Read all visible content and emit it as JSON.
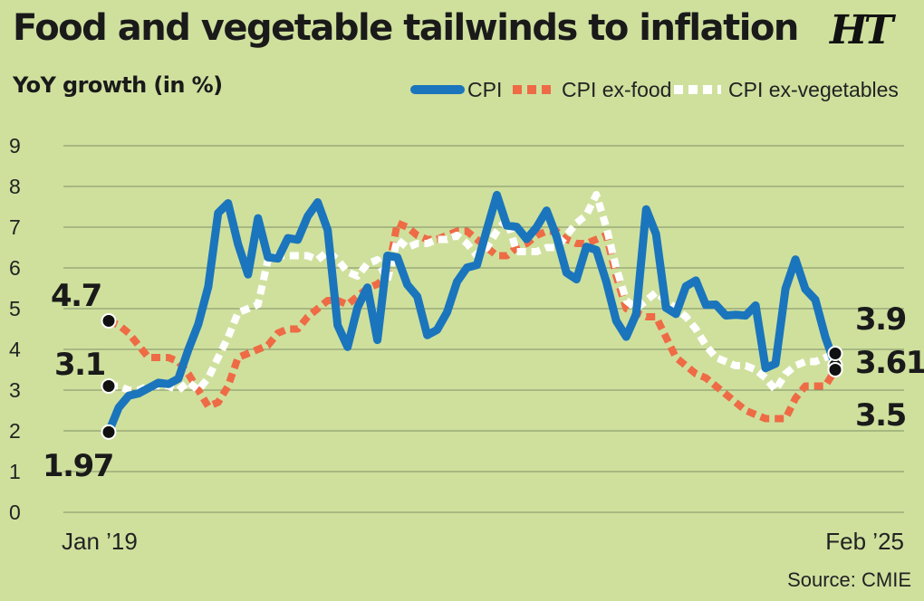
{
  "header": {
    "title": "Food and vegetable tailwinds to inflation",
    "subtitle": "YoY growth (in %)",
    "logo": "HT",
    "source": "Source: CMIE"
  },
  "chart_data": {
    "type": "line",
    "title": "Food and vegetable tailwinds to inflation",
    "ylabel": "YoY growth (in %)",
    "ylim": [
      0,
      9
    ],
    "yticks": [
      "0",
      "1",
      "2",
      "3",
      "4",
      "5",
      "6",
      "7",
      "8",
      "9"
    ],
    "xtick_labels": [
      "Jan ’19",
      "Feb ’25"
    ],
    "x_range": [
      "Jan 2019",
      "Feb 2025"
    ],
    "grid": true,
    "legend_position": "top-right",
    "series": [
      {
        "name": "CPI",
        "color": "#1a75bc",
        "style": "solid",
        "start_label": "1.97",
        "end_label": "3.61",
        "values": [
          1.97,
          2.57,
          2.86,
          2.92,
          3.05,
          3.18,
          3.15,
          3.28,
          3.99,
          4.62,
          5.54,
          7.35,
          7.59,
          6.58,
          5.84,
          7.22,
          6.26,
          6.23,
          6.73,
          6.69,
          7.27,
          7.61,
          6.93,
          4.59,
          4.06,
          5.03,
          5.52,
          4.23,
          6.3,
          6.26,
          5.59,
          5.3,
          4.35,
          4.48,
          4.91,
          5.66,
          6.01,
          6.07,
          6.95,
          7.79,
          7.04,
          7.01,
          6.71,
          7.0,
          7.41,
          6.77,
          5.88,
          5.72,
          6.52,
          6.44,
          5.66,
          4.7,
          4.31,
          4.87,
          7.44,
          6.83,
          5.02,
          4.87,
          5.55,
          5.69,
          5.09,
          5.1,
          4.83,
          4.85,
          4.83,
          5.08,
          3.54,
          3.65,
          5.49,
          6.21,
          5.48,
          5.22,
          4.31,
          3.61
        ]
      },
      {
        "name": "CPI ex-food",
        "color": "#ee6b46",
        "style": "dashed",
        "start_label": "4.7",
        "end_label": "3.5",
        "values": [
          4.7,
          4.6,
          4.4,
          4.1,
          3.8,
          3.8,
          3.8,
          3.7,
          3.4,
          3.0,
          2.6,
          2.7,
          3.1,
          3.8,
          3.9,
          4.0,
          4.1,
          4.4,
          4.5,
          4.5,
          4.8,
          5.0,
          5.2,
          5.2,
          5.1,
          5.3,
          5.5,
          5.6,
          5.8,
          7.1,
          7.0,
          6.8,
          6.7,
          6.7,
          6.8,
          6.9,
          6.9,
          6.7,
          6.5,
          6.3,
          6.3,
          6.5,
          6.6,
          6.8,
          6.9,
          6.9,
          6.7,
          6.6,
          6.6,
          6.7,
          6.8,
          5.8,
          5.0,
          4.9,
          4.8,
          4.8,
          4.3,
          3.8,
          3.6,
          3.4,
          3.3,
          3.1,
          2.9,
          2.7,
          2.5,
          2.4,
          2.3,
          2.3,
          2.3,
          2.8,
          3.1,
          3.1,
          3.1,
          3.5
        ]
      },
      {
        "name": "CPI ex-vegetables",
        "color": "#ffffff",
        "style": "dashed",
        "start_label": "3.1",
        "end_label": "3.9",
        "values": [
          3.1,
          3.1,
          3.0,
          3.0,
          3.1,
          3.1,
          3.1,
          3.0,
          3.2,
          3.0,
          3.3,
          3.8,
          4.3,
          4.9,
          5.0,
          5.1,
          6.2,
          6.3,
          6.3,
          6.3,
          6.3,
          6.2,
          6.4,
          6.2,
          5.9,
          5.8,
          6.1,
          6.2,
          5.7,
          6.7,
          6.5,
          6.6,
          6.6,
          6.7,
          6.7,
          6.8,
          6.6,
          6.3,
          6.5,
          6.9,
          7.2,
          6.4,
          6.4,
          6.4,
          6.5,
          6.5,
          6.8,
          7.1,
          7.3,
          7.8,
          7.0,
          6.0,
          5.2,
          5.0,
          5.2,
          5.4,
          5.2,
          5.0,
          4.8,
          4.5,
          4.1,
          3.8,
          3.7,
          3.6,
          3.6,
          3.5,
          3.3,
          3.0,
          3.4,
          3.6,
          3.7,
          3.7,
          3.8,
          3.9
        ]
      }
    ]
  }
}
